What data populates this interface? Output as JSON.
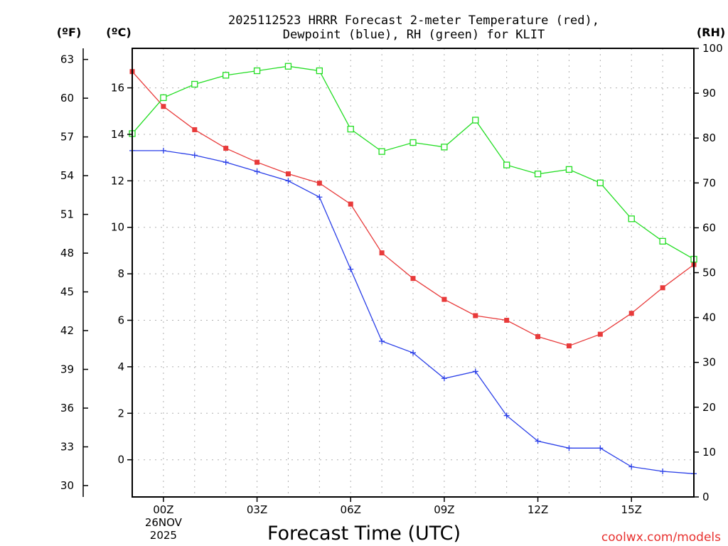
{
  "chart_data": {
    "type": "line",
    "title": [
      "2025112523 HRRR Forecast 2-meter Temperature (red),",
      "Dewpoint (blue), RH (green) for KLIT"
    ],
    "xlabel": "Forecast Time (UTC)",
    "credit": "coolwx.com/models",
    "unit_labels": {
      "left_f": "(ºF)",
      "left_c": "(ºC)",
      "right": "(RH)"
    },
    "x_hours": [
      -1,
      0,
      1,
      2,
      3,
      4,
      5,
      6,
      7,
      8,
      9,
      10,
      11,
      12,
      13,
      14,
      15,
      16,
      17
    ],
    "xlim": [
      -1,
      17
    ],
    "x_ticks": [
      {
        "hour": 0,
        "lines": [
          "00Z",
          "26NOV",
          "2025"
        ]
      },
      {
        "hour": 3,
        "lines": [
          "03Z"
        ]
      },
      {
        "hour": 6,
        "lines": [
          "06Z"
        ]
      },
      {
        "hour": 9,
        "lines": [
          "09Z"
        ]
      },
      {
        "hour": 12,
        "lines": [
          "12Z"
        ]
      },
      {
        "hour": 15,
        "lines": [
          "15Z"
        ]
      }
    ],
    "ylim_c": [
      -1.6,
      17.7
    ],
    "y_ticks_c": [
      0,
      2,
      4,
      6,
      8,
      10,
      12,
      14,
      16
    ],
    "y_ticks_f": [
      30,
      33,
      36,
      39,
      42,
      45,
      48,
      51,
      54,
      57,
      60,
      63
    ],
    "ylim_rh": [
      0,
      100
    ],
    "y_ticks_rh": [
      0,
      10,
      20,
      30,
      40,
      50,
      60,
      70,
      80,
      90,
      100
    ],
    "series": [
      {
        "name": "Temperature",
        "axis": "c",
        "color": "#e83a3a",
        "marker": "filled-square",
        "values": [
          16.7,
          15.2,
          14.2,
          13.4,
          12.8,
          12.3,
          11.9,
          11.0,
          8.9,
          7.8,
          6.9,
          6.2,
          6.0,
          5.3,
          4.9,
          5.4,
          6.3,
          7.4,
          8.4
        ]
      },
      {
        "name": "Dewpoint",
        "axis": "c",
        "color": "#2a3fe8",
        "marker": "plus",
        "values": [
          13.3,
          13.3,
          13.1,
          12.8,
          12.4,
          12.0,
          11.3,
          8.2,
          5.1,
          4.6,
          3.5,
          3.8,
          1.9,
          0.8,
          0.5,
          0.5,
          -0.3,
          -0.5,
          -0.6
        ]
      },
      {
        "name": "RH",
        "axis": "rh",
        "color": "#22dd22",
        "marker": "open-square",
        "values": [
          81,
          89,
          92,
          94,
          95,
          96,
          95,
          82,
          77,
          79,
          78,
          84,
          74,
          72,
          73,
          70,
          62,
          57,
          53
        ]
      }
    ]
  }
}
